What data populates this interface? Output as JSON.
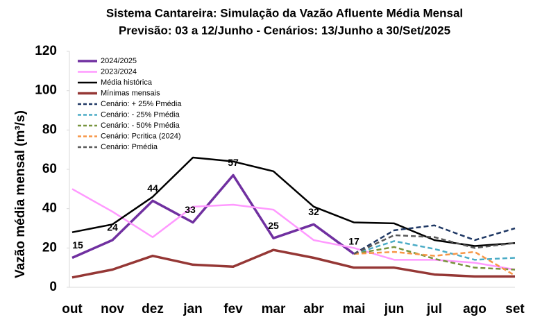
{
  "chart_data": {
    "type": "line",
    "title": "Sistema Cantareira: Simulação da Vazão Afluente Média Mensal",
    "subtitle": "Previsão: 03 a 12/Junho - Cenários: 13/Junho a 30/Set/2025",
    "y_label": "Vazão média mensal (m³/s)",
    "categories": [
      "out",
      "nov",
      "dez",
      "jan",
      "fev",
      "mar",
      "abr",
      "mai",
      "jun",
      "jul",
      "ago",
      "set"
    ],
    "ylim": [
      0,
      120
    ],
    "yticks": [
      0,
      20,
      40,
      60,
      80,
      100,
      120
    ],
    "series": [
      {
        "name": "2024/2025",
        "color": "#7030a0",
        "width": 3.5,
        "dashed": false,
        "data_labels": true,
        "values": [
          15,
          24,
          44,
          33,
          57,
          25,
          32,
          17,
          null,
          null,
          null,
          null
        ]
      },
      {
        "name": "2023/2024",
        "color": "#ff99ff",
        "width": 2.5,
        "dashed": false,
        "values": [
          50,
          38.5,
          25.5,
          41,
          42,
          39.5,
          24,
          20,
          14,
          14,
          12.5,
          9
        ]
      },
      {
        "name": "Média histórica",
        "color": "#000000",
        "width": 2.5,
        "dashed": false,
        "values": [
          28,
          32,
          46,
          66,
          64,
          59,
          41,
          33,
          32.5,
          24,
          21,
          22.5
        ]
      },
      {
        "name": "Mínimas mensais",
        "color": "#953735",
        "width": 3.5,
        "dashed": false,
        "values": [
          5,
          9,
          16,
          11.5,
          10.5,
          19,
          15,
          10,
          10,
          6.5,
          5.5,
          5.5
        ]
      },
      {
        "name": "Cenário: + 25% Pmédia",
        "color": "#1f3864",
        "width": 2.5,
        "dashed": true,
        "values": [
          null,
          null,
          null,
          null,
          null,
          null,
          null,
          17,
          29,
          31.5,
          24,
          30
        ]
      },
      {
        "name": "Cenário: - 25% Pmédia",
        "color": "#4bacc6",
        "width": 2.5,
        "dashed": true,
        "values": [
          null,
          null,
          null,
          null,
          null,
          null,
          null,
          17,
          23.5,
          19.5,
          14,
          15
        ]
      },
      {
        "name": "Cenário: - 50% Pmédia",
        "color": "#77933c",
        "width": 2.5,
        "dashed": true,
        "values": [
          null,
          null,
          null,
          null,
          null,
          null,
          null,
          17,
          20.5,
          14.5,
          10,
          9
        ]
      },
      {
        "name": "Cenário: Pcritica (2024)",
        "color": "#f79646",
        "width": 2.5,
        "dashed": true,
        "values": [
          null,
          null,
          null,
          null,
          null,
          null,
          null,
          17,
          18,
          16,
          18,
          6
        ]
      },
      {
        "name": "Cenário: Pmédia",
        "color": "#595959",
        "width": 2.5,
        "dashed": true,
        "values": [
          null,
          null,
          null,
          null,
          null,
          null,
          null,
          17,
          26.5,
          25.5,
          20,
          22.5
        ]
      }
    ]
  }
}
